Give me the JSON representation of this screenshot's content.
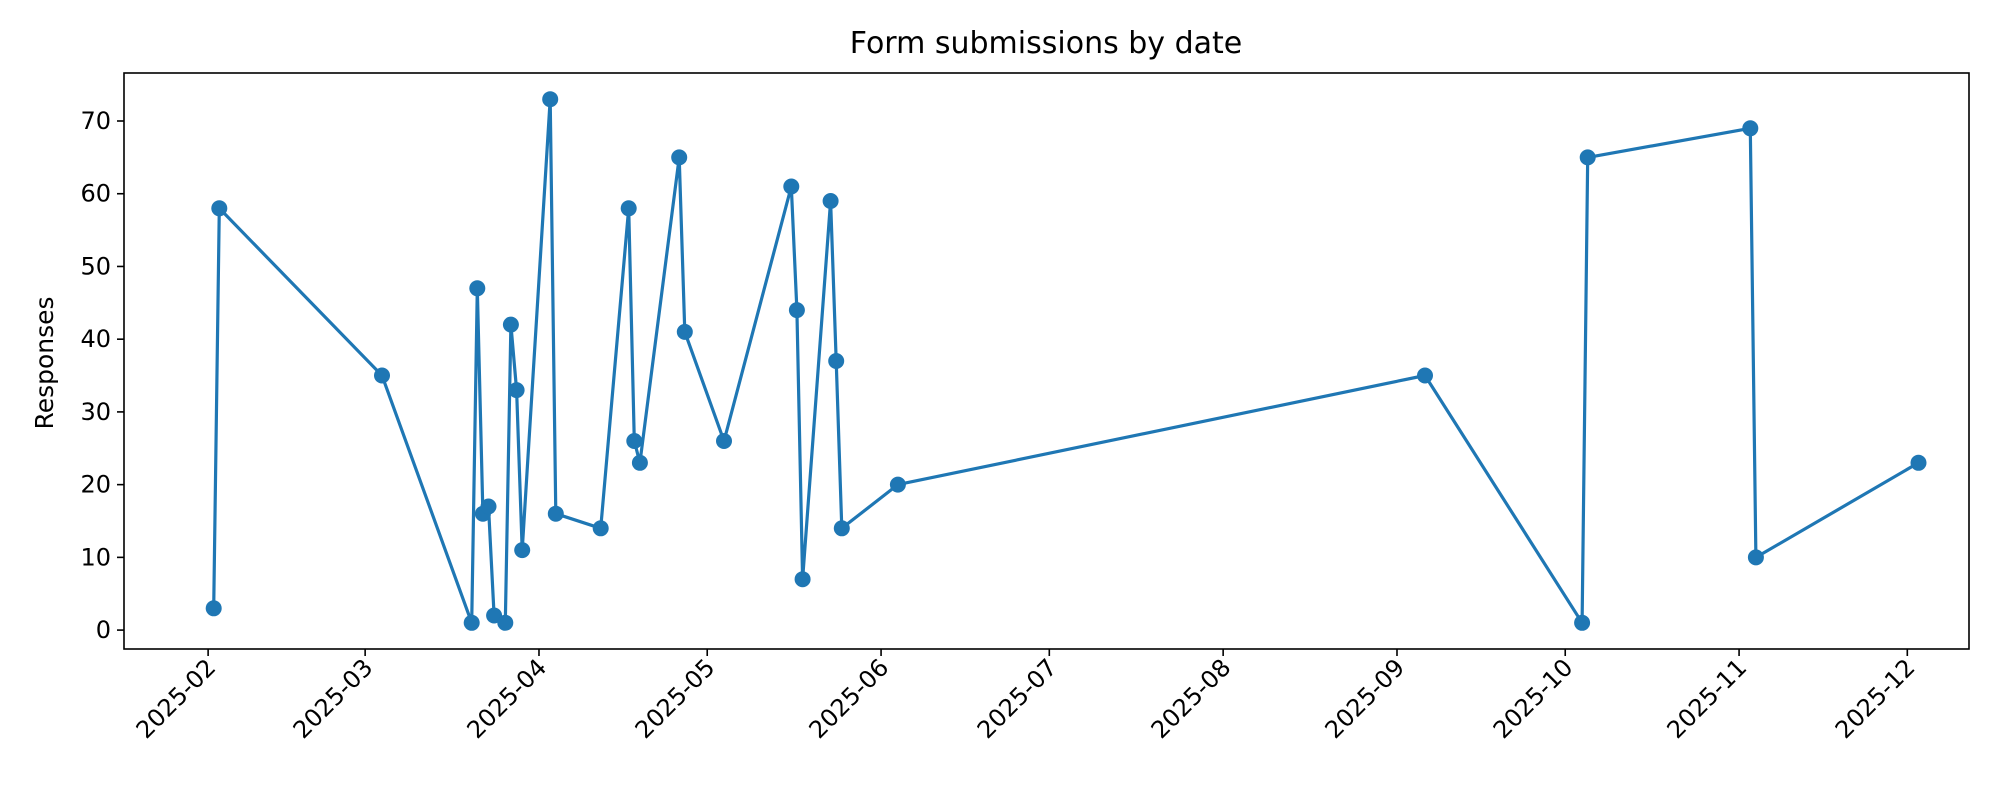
{
  "chart_data": {
    "type": "line",
    "title": "Form submissions by date",
    "xlabel": "",
    "ylabel": "Responses",
    "xlim": [
      "2025-01-17",
      "2025-12-12"
    ],
    "ylim": [
      -2.6,
      76.6
    ],
    "x_ticks": [
      "2025-02",
      "2025-03",
      "2025-04",
      "2025-05",
      "2025-06",
      "2025-07",
      "2025-08",
      "2025-09",
      "2025-10",
      "2025-11",
      "2025-12"
    ],
    "y_ticks": [
      0,
      10,
      20,
      30,
      40,
      50,
      60,
      70
    ],
    "grid": false,
    "legend": "none",
    "color": "#1f77b4",
    "series": [
      {
        "points": [
          [
            "2025-02-02",
            3
          ],
          [
            "2025-02-03",
            58
          ],
          [
            "2025-03-04",
            35
          ],
          [
            "2025-03-20",
            1
          ],
          [
            "2025-03-21",
            47
          ],
          [
            "2025-03-22",
            16
          ],
          [
            "2025-03-23",
            17
          ],
          [
            "2025-03-24",
            2
          ],
          [
            "2025-03-26",
            1
          ],
          [
            "2025-03-27",
            42
          ],
          [
            "2025-03-28",
            33
          ],
          [
            "2025-03-29",
            11
          ],
          [
            "2025-04-03",
            73
          ],
          [
            "2025-04-04",
            16
          ],
          [
            "2025-04-12",
            14
          ],
          [
            "2025-04-17",
            58
          ],
          [
            "2025-04-18",
            26
          ],
          [
            "2025-04-19",
            23
          ],
          [
            "2025-04-26",
            65
          ],
          [
            "2025-04-27",
            41
          ],
          [
            "2025-05-04",
            26
          ],
          [
            "2025-05-16",
            61
          ],
          [
            "2025-05-17",
            44
          ],
          [
            "2025-05-18",
            7
          ],
          [
            "2025-05-23",
            59
          ],
          [
            "2025-05-24",
            37
          ],
          [
            "2025-05-25",
            14
          ],
          [
            "2025-06-04",
            20
          ],
          [
            "2025-09-06",
            35
          ],
          [
            "2025-10-04",
            1
          ],
          [
            "2025-10-05",
            65
          ],
          [
            "2025-11-03",
            69
          ],
          [
            "2025-11-04",
            10
          ],
          [
            "2025-12-03",
            23
          ]
        ]
      }
    ]
  }
}
